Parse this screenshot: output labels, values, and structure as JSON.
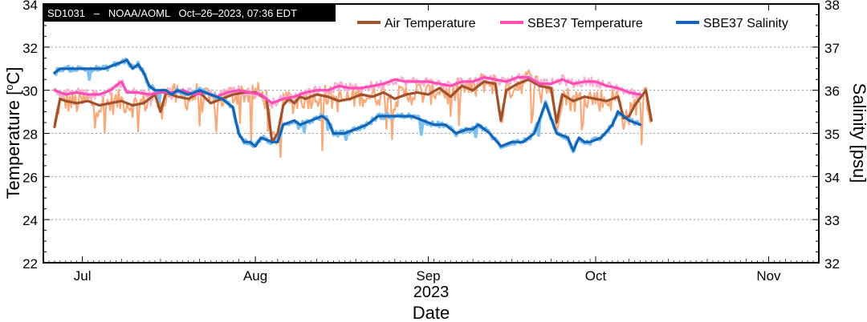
{
  "chart_data": {
    "type": "line",
    "header": "SD1031   –   NOAA/AOML   Oct–26–2023, 07:36 EDT",
    "xlabel": "Date",
    "year_label": "2023",
    "ylabel_left": "Temperature [",
    "ylabel_left_sup": "o",
    "ylabel_left_end": "C]",
    "ylabel_right": "Salinity [psu]",
    "x_ticks": [
      "Jul",
      "Aug",
      "Sep",
      "Oct",
      "Nov"
    ],
    "x_tick_dates": [
      "2023-07-01",
      "2023-08-01",
      "2023-09-01",
      "2023-10-01",
      "2023-11-01"
    ],
    "xlim": [
      "2023-06-24",
      "2023-11-10"
    ],
    "ylim_left": [
      22,
      34
    ],
    "ylim_right": [
      32,
      38
    ],
    "left_ticks": [
      22,
      24,
      26,
      28,
      30,
      32,
      34
    ],
    "right_ticks": [
      32,
      33,
      34,
      35,
      36,
      37,
      38
    ],
    "grid": "horizontal dotted",
    "legend_position": "top-right",
    "colors": {
      "air": "#a0522d",
      "air_raw": "#f7a97a",
      "sbe_temp": "#ff4db8",
      "sbe_temp_raw": "#f8b0cf",
      "salinity": "#1564b5",
      "salinity_raw": "#7ec1ef"
    },
    "series": [
      {
        "name": "Air Temperature",
        "axis": "left",
        "x": [
          "2023-06-26",
          "2023-06-27",
          "2023-06-28",
          "2023-06-30",
          "2023-07-02",
          "2023-07-04",
          "2023-07-06",
          "2023-07-08",
          "2023-07-10",
          "2023-07-12",
          "2023-07-14",
          "2023-07-15",
          "2023-07-16",
          "2023-07-18",
          "2023-07-20",
          "2023-07-22",
          "2023-07-24",
          "2023-07-26",
          "2023-07-28",
          "2023-07-30",
          "2023-08-01",
          "2023-08-03",
          "2023-08-04",
          "2023-08-05",
          "2023-08-06",
          "2023-08-07",
          "2023-08-08",
          "2023-08-09",
          "2023-08-10",
          "2023-08-12",
          "2023-08-14",
          "2023-08-16",
          "2023-08-18",
          "2023-08-20",
          "2023-08-22",
          "2023-08-24",
          "2023-08-26",
          "2023-08-28",
          "2023-08-30",
          "2023-09-01",
          "2023-09-03",
          "2023-09-05",
          "2023-09-07",
          "2023-09-09",
          "2023-09-11",
          "2023-09-13",
          "2023-09-14",
          "2023-09-15",
          "2023-09-17",
          "2023-09-19",
          "2023-09-21",
          "2023-09-23",
          "2023-09-24",
          "2023-09-25",
          "2023-09-27",
          "2023-09-29",
          "2023-10-01",
          "2023-10-03",
          "2023-10-05",
          "2023-10-06",
          "2023-10-07",
          "2023-10-08",
          "2023-10-10",
          "2023-10-11"
        ],
        "values": [
          28.3,
          29.6,
          29.5,
          29.4,
          29.5,
          29.3,
          29.4,
          29.5,
          29.3,
          29.4,
          29.8,
          29.0,
          29.9,
          29.7,
          29.6,
          29.9,
          29.4,
          29.6,
          29.8,
          29.9,
          29.9,
          29.6,
          27.6,
          28.0,
          29.3,
          29.6,
          29.4,
          29.7,
          29.6,
          29.8,
          29.7,
          29.5,
          29.6,
          29.8,
          29.7,
          29.9,
          29.6,
          29.8,
          29.9,
          29.8,
          30.1,
          29.7,
          30.2,
          30.0,
          30.4,
          30.3,
          28.6,
          30.0,
          30.3,
          30.5,
          30.2,
          30.1,
          28.5,
          29.8,
          29.5,
          29.7,
          29.6,
          29.5,
          29.7,
          28.7,
          28.8,
          29.3,
          30.0,
          28.6
        ]
      },
      {
        "name": "SBE37 Temperature",
        "axis": "left",
        "x": [
          "2023-06-26",
          "2023-06-28",
          "2023-06-30",
          "2023-07-02",
          "2023-07-04",
          "2023-07-06",
          "2023-07-08",
          "2023-07-09",
          "2023-07-11",
          "2023-07-13",
          "2023-07-15",
          "2023-07-17",
          "2023-07-19",
          "2023-07-21",
          "2023-07-23",
          "2023-07-25",
          "2023-07-27",
          "2023-07-29",
          "2023-07-31",
          "2023-08-02",
          "2023-08-04",
          "2023-08-06",
          "2023-08-08",
          "2023-08-10",
          "2023-08-12",
          "2023-08-14",
          "2023-08-16",
          "2023-08-18",
          "2023-08-20",
          "2023-08-22",
          "2023-08-24",
          "2023-08-26",
          "2023-08-28",
          "2023-08-30",
          "2023-09-01",
          "2023-09-03",
          "2023-09-05",
          "2023-09-07",
          "2023-09-09",
          "2023-09-11",
          "2023-09-13",
          "2023-09-15",
          "2023-09-17",
          "2023-09-19",
          "2023-09-21",
          "2023-09-23",
          "2023-09-25",
          "2023-09-27",
          "2023-09-29",
          "2023-10-01",
          "2023-10-03",
          "2023-10-05",
          "2023-10-07",
          "2023-10-09"
        ],
        "values": [
          30.0,
          29.8,
          29.9,
          29.8,
          29.8,
          30.0,
          30.4,
          29.9,
          29.9,
          29.8,
          29.9,
          29.9,
          30.0,
          29.8,
          29.9,
          29.7,
          29.9,
          30.0,
          29.9,
          29.8,
          29.4,
          29.6,
          29.7,
          29.9,
          30.0,
          30.0,
          30.2,
          30.1,
          30.1,
          30.2,
          30.3,
          30.5,
          30.4,
          30.4,
          30.4,
          30.3,
          30.2,
          30.4,
          30.4,
          30.6,
          30.5,
          30.4,
          30.6,
          30.6,
          30.3,
          30.3,
          30.5,
          30.3,
          30.4,
          30.4,
          30.2,
          30.1,
          29.9,
          29.8
        ]
      },
      {
        "name": "SBE37 Salinity",
        "axis": "right",
        "x": [
          "2023-06-26",
          "2023-06-27",
          "2023-06-29",
          "2023-07-01",
          "2023-07-03",
          "2023-07-05",
          "2023-07-07",
          "2023-07-09",
          "2023-07-10",
          "2023-07-11",
          "2023-07-12",
          "2023-07-13",
          "2023-07-14",
          "2023-07-15",
          "2023-07-16",
          "2023-07-17",
          "2023-07-18",
          "2023-07-20",
          "2023-07-22",
          "2023-07-24",
          "2023-07-26",
          "2023-07-28",
          "2023-07-29",
          "2023-07-30",
          "2023-07-31",
          "2023-08-01",
          "2023-08-02",
          "2023-08-04",
          "2023-08-05",
          "2023-08-06",
          "2023-08-08",
          "2023-08-09",
          "2023-08-11",
          "2023-08-13",
          "2023-08-14",
          "2023-08-15",
          "2023-08-17",
          "2023-08-19",
          "2023-08-21",
          "2023-08-23",
          "2023-08-25",
          "2023-08-27",
          "2023-08-29",
          "2023-08-31",
          "2023-09-02",
          "2023-09-04",
          "2023-09-06",
          "2023-09-08",
          "2023-09-09",
          "2023-09-10",
          "2023-09-12",
          "2023-09-14",
          "2023-09-16",
          "2023-09-18",
          "2023-09-19",
          "2023-09-20",
          "2023-09-22",
          "2023-09-24",
          "2023-09-26",
          "2023-09-27",
          "2023-09-28",
          "2023-09-29",
          "2023-09-30",
          "2023-10-02",
          "2023-10-04",
          "2023-10-05",
          "2023-10-07",
          "2023-10-09"
        ],
        "values": [
          36.4,
          36.5,
          36.5,
          36.5,
          36.5,
          36.5,
          36.6,
          36.7,
          36.5,
          36.6,
          36.4,
          36.1,
          36.0,
          36.0,
          36.0,
          35.9,
          36.0,
          35.9,
          36.0,
          35.9,
          35.8,
          35.6,
          35.0,
          34.8,
          34.8,
          34.7,
          34.9,
          34.8,
          34.8,
          35.2,
          35.3,
          35.2,
          35.3,
          35.4,
          35.3,
          35.0,
          35.0,
          35.1,
          35.2,
          35.4,
          35.4,
          35.4,
          35.4,
          35.3,
          35.2,
          35.2,
          35.0,
          35.1,
          35.1,
          35.2,
          35.0,
          34.7,
          34.8,
          34.8,
          34.9,
          35.0,
          35.7,
          35.0,
          34.9,
          34.6,
          34.9,
          34.8,
          34.8,
          34.9,
          35.2,
          35.5,
          35.3,
          35.2
        ]
      }
    ]
  }
}
